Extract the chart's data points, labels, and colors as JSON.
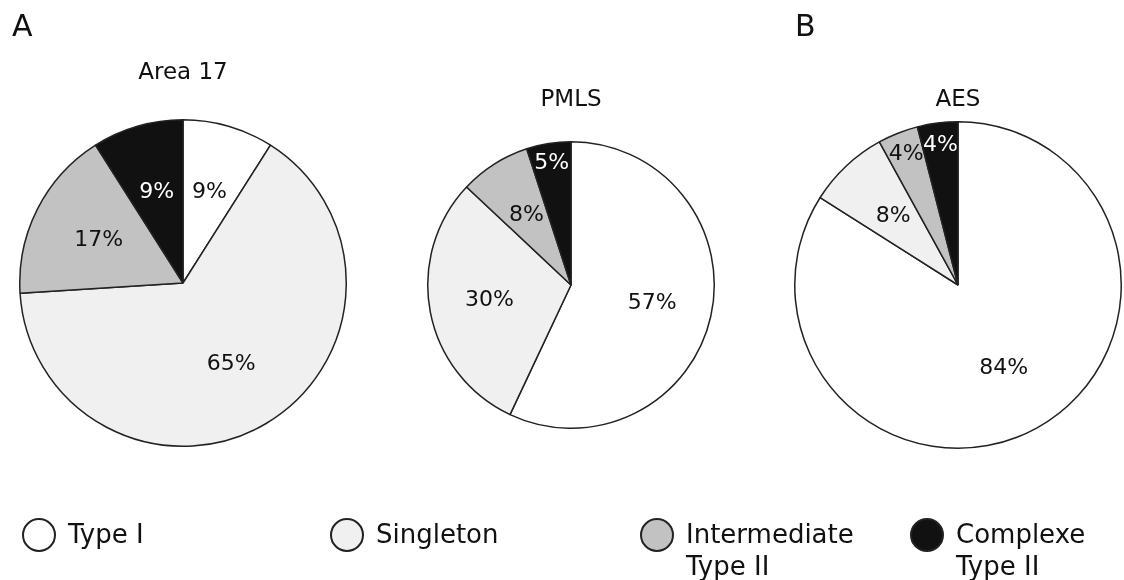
{
  "chart_data": [
    {
      "type": "pie",
      "title": "Area 17",
      "annotations": [
        "A"
      ],
      "categories": [
        "Type I",
        "Singleton",
        "Intermediate Type II",
        "Complexe Type II"
      ],
      "values": [
        9,
        65,
        17,
        9
      ],
      "value_labels": [
        "9%",
        "65%",
        "17%",
        "9%"
      ],
      "colors": [
        "#ffffff",
        "#f0f0f0",
        "#c2c2c2",
        "#111111"
      ],
      "legend": "bottom"
    },
    {
      "type": "pie",
      "title": "PMLS",
      "categories": [
        null,
        null,
        null,
        null
      ],
      "values": [
        57,
        30,
        8,
        5
      ],
      "value_labels": [
        "57%",
        "30%",
        "8%",
        "5%"
      ],
      "colors": [
        "#ffffff",
        "#f0f0f0",
        "#c2c2c2",
        "#111111"
      ]
    },
    {
      "type": "pie",
      "title": "AES",
      "annotations": [
        "B"
      ],
      "categories": [
        null,
        null,
        null,
        null
      ],
      "values": [
        84,
        8,
        4,
        4
      ],
      "value_labels": [
        "84%",
        "8%",
        "4%",
        "4%"
      ],
      "colors": [
        "#ffffff",
        "#f0f0f0",
        "#c2c2c2",
        "#111111"
      ]
    }
  ]
}
